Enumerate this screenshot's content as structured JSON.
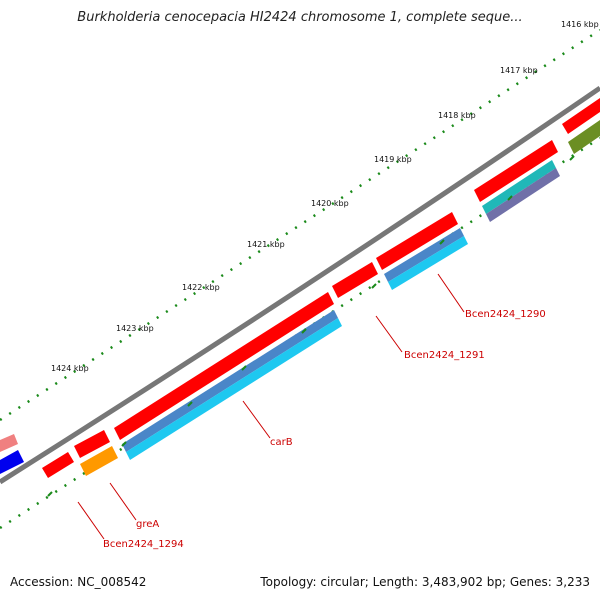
{
  "title": "Burkholderia cenocepacia HI2424 chromosome 1, complete seque...",
  "accession": "Accession: NC_008542",
  "summary": "Topology: circular; Length: 3,483,902 bp; Genes: 3,233",
  "tick_labels": [
    "1416 kbp",
    "1417 kbp",
    "1418 kbp",
    "1419 kbp",
    "1420 kbp",
    "1421 kbp",
    "1422 kbp",
    "1423 kbp",
    "1424 kbp"
  ],
  "gene_labels": [
    "Bcen2424_1290",
    "Bcen2424_1291",
    "carB",
    "greA",
    "Bcen2424_1294"
  ],
  "colors": {
    "backbone": "#777777",
    "cds_forward": "#ff0000",
    "cds_forward_pink": "#f08080",
    "cds_reverse_blue": "#0000ee",
    "feature_cyan": "#1ec8f0",
    "feature_steel": "#4a86c8",
    "feature_teal": "#20b8b8",
    "feature_slate": "#7070a8",
    "feature_olive": "#6b8e23",
    "feature_orange": "#ff9900",
    "tick_marks": "#1a8a1a",
    "label_text": "#cc0000"
  }
}
